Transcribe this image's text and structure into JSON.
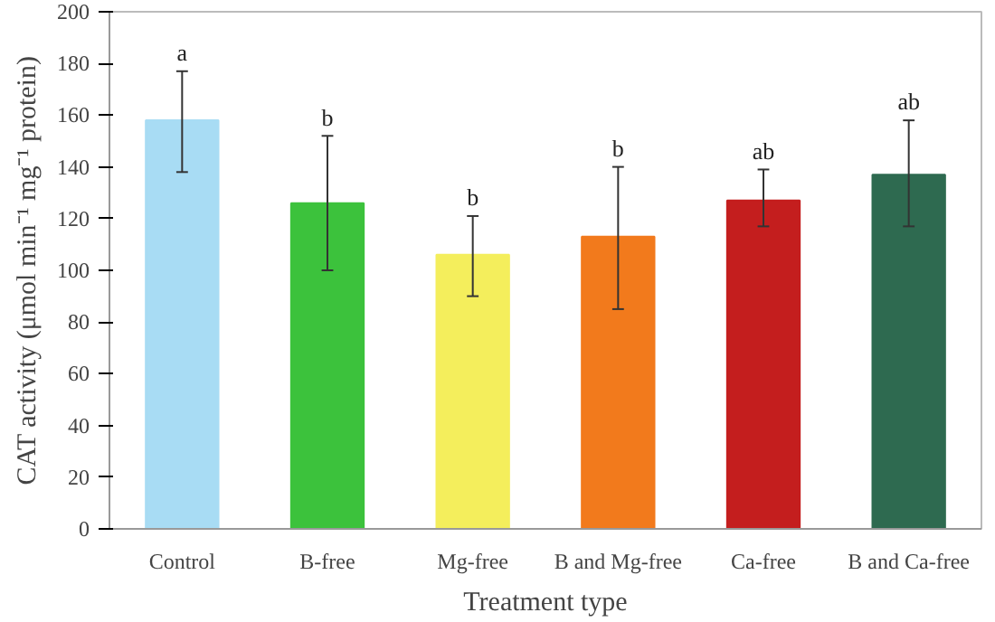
{
  "chart_data": {
    "type": "bar",
    "xlabel": "Treatment type",
    "ylabel": "CAT activity (μmol min⁻¹ mg⁻¹ protein)",
    "categories": [
      "Control",
      "B-free",
      "Mg-free",
      "B and Mg-free",
      "Ca-free",
      "B and Ca-free"
    ],
    "values": [
      158,
      126,
      106,
      113,
      127,
      137
    ],
    "errors": [
      [
        138,
        177
      ],
      [
        100,
        152
      ],
      [
        90,
        121
      ],
      [
        85,
        140
      ],
      [
        117,
        139
      ],
      [
        117,
        158
      ]
    ],
    "colors": [
      "#a8dcf4",
      "#3cc23c",
      "#f4ee5c",
      "#f27a1c",
      "#c41e1e",
      "#2e6a50"
    ],
    "ylim": [
      0,
      200
    ],
    "yticks": [
      0,
      20,
      40,
      60,
      80,
      100,
      120,
      140,
      160,
      180,
      200
    ],
    "grid": false,
    "annotations": [
      {
        "text": "a",
        "x": "Control",
        "y": 177
      },
      {
        "text": "b",
        "x": "B-free",
        "y": 152
      },
      {
        "text": "b",
        "x": "Mg-free",
        "y": 121
      },
      {
        "text": "b",
        "x": "B and Mg-free",
        "y": 140
      },
      {
        "text": "ab",
        "x": "Ca-free",
        "y": 139
      },
      {
        "text": "ab",
        "x": "B and Ca-free",
        "y": 158
      }
    ]
  }
}
